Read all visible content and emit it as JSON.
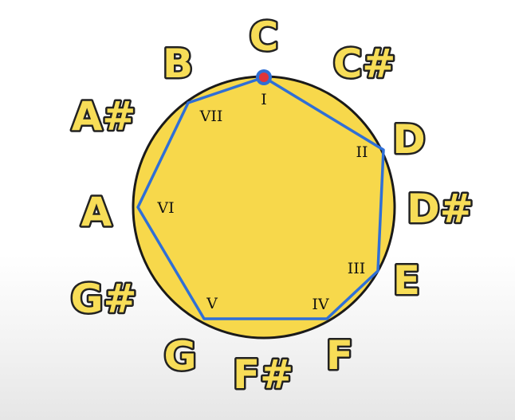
{
  "colors": {
    "circle_fill": "#f7d84b",
    "circle_stroke": "#1a1a1a",
    "polygon_stroke": "#2f6fd6",
    "marker_fill": "#e0343a",
    "marker_ring": "#2f6fd6",
    "note_fill": "#f7dd57",
    "note_outline": "#222222"
  },
  "notes": [
    {
      "id": "c",
      "label": "C"
    },
    {
      "id": "c-sharp",
      "label": "C#"
    },
    {
      "id": "d",
      "label": "D"
    },
    {
      "id": "d-sharp",
      "label": "D#"
    },
    {
      "id": "e",
      "label": "E"
    },
    {
      "id": "f",
      "label": "F"
    },
    {
      "id": "f-sharp",
      "label": "F#"
    },
    {
      "id": "g",
      "label": "G"
    },
    {
      "id": "g-sharp",
      "label": "G#"
    },
    {
      "id": "a",
      "label": "A"
    },
    {
      "id": "a-sharp",
      "label": "A#"
    },
    {
      "id": "b",
      "label": "B"
    }
  ],
  "scale_degrees": [
    {
      "id": "i",
      "label": "I",
      "note": "C"
    },
    {
      "id": "ii",
      "label": "II",
      "note": "D"
    },
    {
      "id": "iii",
      "label": "III",
      "note": "E"
    },
    {
      "id": "iv",
      "label": "IV",
      "note": "F"
    },
    {
      "id": "v",
      "label": "V",
      "note": "G"
    },
    {
      "id": "vi",
      "label": "VI",
      "note": "A"
    },
    {
      "id": "vii",
      "label": "VII",
      "note": "B"
    }
  ],
  "marker": {
    "note": "C"
  }
}
